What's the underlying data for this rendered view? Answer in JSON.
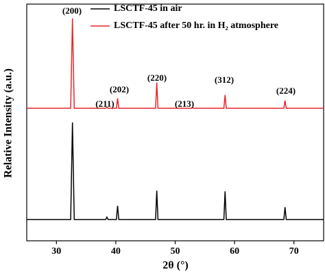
{
  "chart_data": {
    "type": "line",
    "xlabel": "2θ (°)",
    "ylabel": "Relative Intensity (a.u.)",
    "x": [
      25,
      32.4,
      32.7,
      33.0,
      38.3,
      38.5,
      38.7,
      40.1,
      40.3,
      40.5,
      46.7,
      46.9,
      47.1,
      52.7,
      52.9,
      53.1,
      58.2,
      58.4,
      58.6,
      68.3,
      68.5,
      68.7,
      75
    ],
    "series": [
      {
        "name": "LSCTF-45 in air",
        "color": "#000000",
        "values": [
          9,
          9,
          50,
          9,
          9,
          10,
          9,
          9,
          14.8,
          9,
          9,
          21.2,
          9,
          9,
          9,
          9,
          9,
          20.9,
          9,
          9,
          14.2,
          9,
          9
        ]
      },
      {
        "name": "LSCTF-45 after 50 hr. in H₂ atmosphere",
        "color": "#e8262b",
        "values": [
          56,
          56,
          94,
          56,
          56,
          56.5,
          56,
          56,
          60.2,
          56,
          56,
          66.9,
          56,
          56,
          56.3,
          56,
          56,
          61.6,
          56,
          56,
          59.3,
          56,
          56
        ]
      }
    ],
    "annotations": [
      "(200)",
      "(211)",
      "(202)",
      "(220)",
      "(213)",
      "(312)",
      "(224)"
    ],
    "xlim": [
      25,
      75
    ],
    "xticks": [
      30,
      40,
      50,
      60,
      70
    ],
    "ylim": [
      0,
      100
    ],
    "legend": "upper right"
  }
}
